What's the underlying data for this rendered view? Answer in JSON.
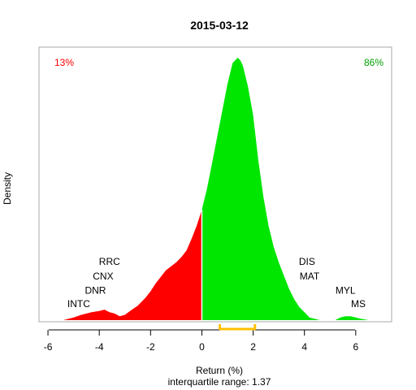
{
  "chart_data": {
    "type": "area",
    "title": "2015-03-12",
    "xlabel": "Return (%)",
    "ylabel": "Density",
    "subtitle": "interquartile range: 1.37",
    "xlim": [
      -6.35,
      7.4
    ],
    "ylim": [
      0,
      1
    ],
    "x_ticks": [
      -6,
      -4,
      -2,
      0,
      2,
      4,
      6
    ],
    "x_tick_labels": [
      "-6",
      "-4",
      "-2",
      "0",
      "2",
      "4",
      "6"
    ],
    "split_at": 0,
    "negative_share": "13%",
    "positive_share": "86%",
    "colors": {
      "negative": "#ff0000",
      "positive": "#00e600",
      "iqr": "#ffc000",
      "negative_text": "#ff0000",
      "positive_text": "#00a000",
      "axis": "#000000",
      "box": "#aaaaaa"
    },
    "iqr": [
      0.7,
      2.07
    ],
    "density": {
      "x": [
        -5.4,
        -5.0,
        -4.7,
        -4.3,
        -4.0,
        -3.8,
        -3.6,
        -3.4,
        -3.2,
        -3.0,
        -2.8,
        -2.5,
        -2.2,
        -2.0,
        -1.8,
        -1.6,
        -1.4,
        -1.2,
        -1.0,
        -0.8,
        -0.6,
        -0.4,
        -0.2,
        0.0,
        0.2,
        0.4,
        0.6,
        0.8,
        1.0,
        1.2,
        1.4,
        1.5,
        1.6,
        1.8,
        2.0,
        2.2,
        2.4,
        2.6,
        2.8,
        3.0,
        3.2,
        3.4,
        3.6,
        3.8,
        4.0,
        4.2,
        4.4,
        4.6,
        4.8,
        5.0,
        5.2,
        5.4,
        5.6,
        5.8,
        6.0,
        6.2,
        6.5
      ],
      "y": [
        0.0,
        0.01,
        0.02,
        0.03,
        0.035,
        0.04,
        0.03,
        0.025,
        0.015,
        0.02,
        0.035,
        0.055,
        0.085,
        0.11,
        0.14,
        0.165,
        0.19,
        0.205,
        0.22,
        0.24,
        0.265,
        0.31,
        0.36,
        0.42,
        0.5,
        0.6,
        0.7,
        0.8,
        0.9,
        0.98,
        1.0,
        0.99,
        0.97,
        0.89,
        0.78,
        0.61,
        0.47,
        0.36,
        0.28,
        0.22,
        0.17,
        0.12,
        0.08,
        0.05,
        0.03,
        0.01,
        0.005,
        0.0,
        0.0,
        0.0,
        0.0,
        0.01,
        0.015,
        0.015,
        0.01,
        0.005,
        0.0
      ]
    },
    "annotations": [
      {
        "text": "RRC",
        "x": -3.6,
        "y": 0.21,
        "align": "middle"
      },
      {
        "text": "CNX",
        "x": -3.85,
        "y": 0.155,
        "align": "middle"
      },
      {
        "text": "DNR",
        "x": -4.15,
        "y": 0.1,
        "align": "middle"
      },
      {
        "text": "INTC",
        "x": -4.8,
        "y": 0.05,
        "align": "middle"
      },
      {
        "text": "DIS",
        "x": 4.1,
        "y": 0.21,
        "align": "middle"
      },
      {
        "text": "MAT",
        "x": 4.2,
        "y": 0.155,
        "align": "middle"
      },
      {
        "text": "MYL",
        "x": 5.6,
        "y": 0.1,
        "align": "middle"
      },
      {
        "text": "MS",
        "x": 6.1,
        "y": 0.05,
        "align": "middle"
      }
    ]
  }
}
